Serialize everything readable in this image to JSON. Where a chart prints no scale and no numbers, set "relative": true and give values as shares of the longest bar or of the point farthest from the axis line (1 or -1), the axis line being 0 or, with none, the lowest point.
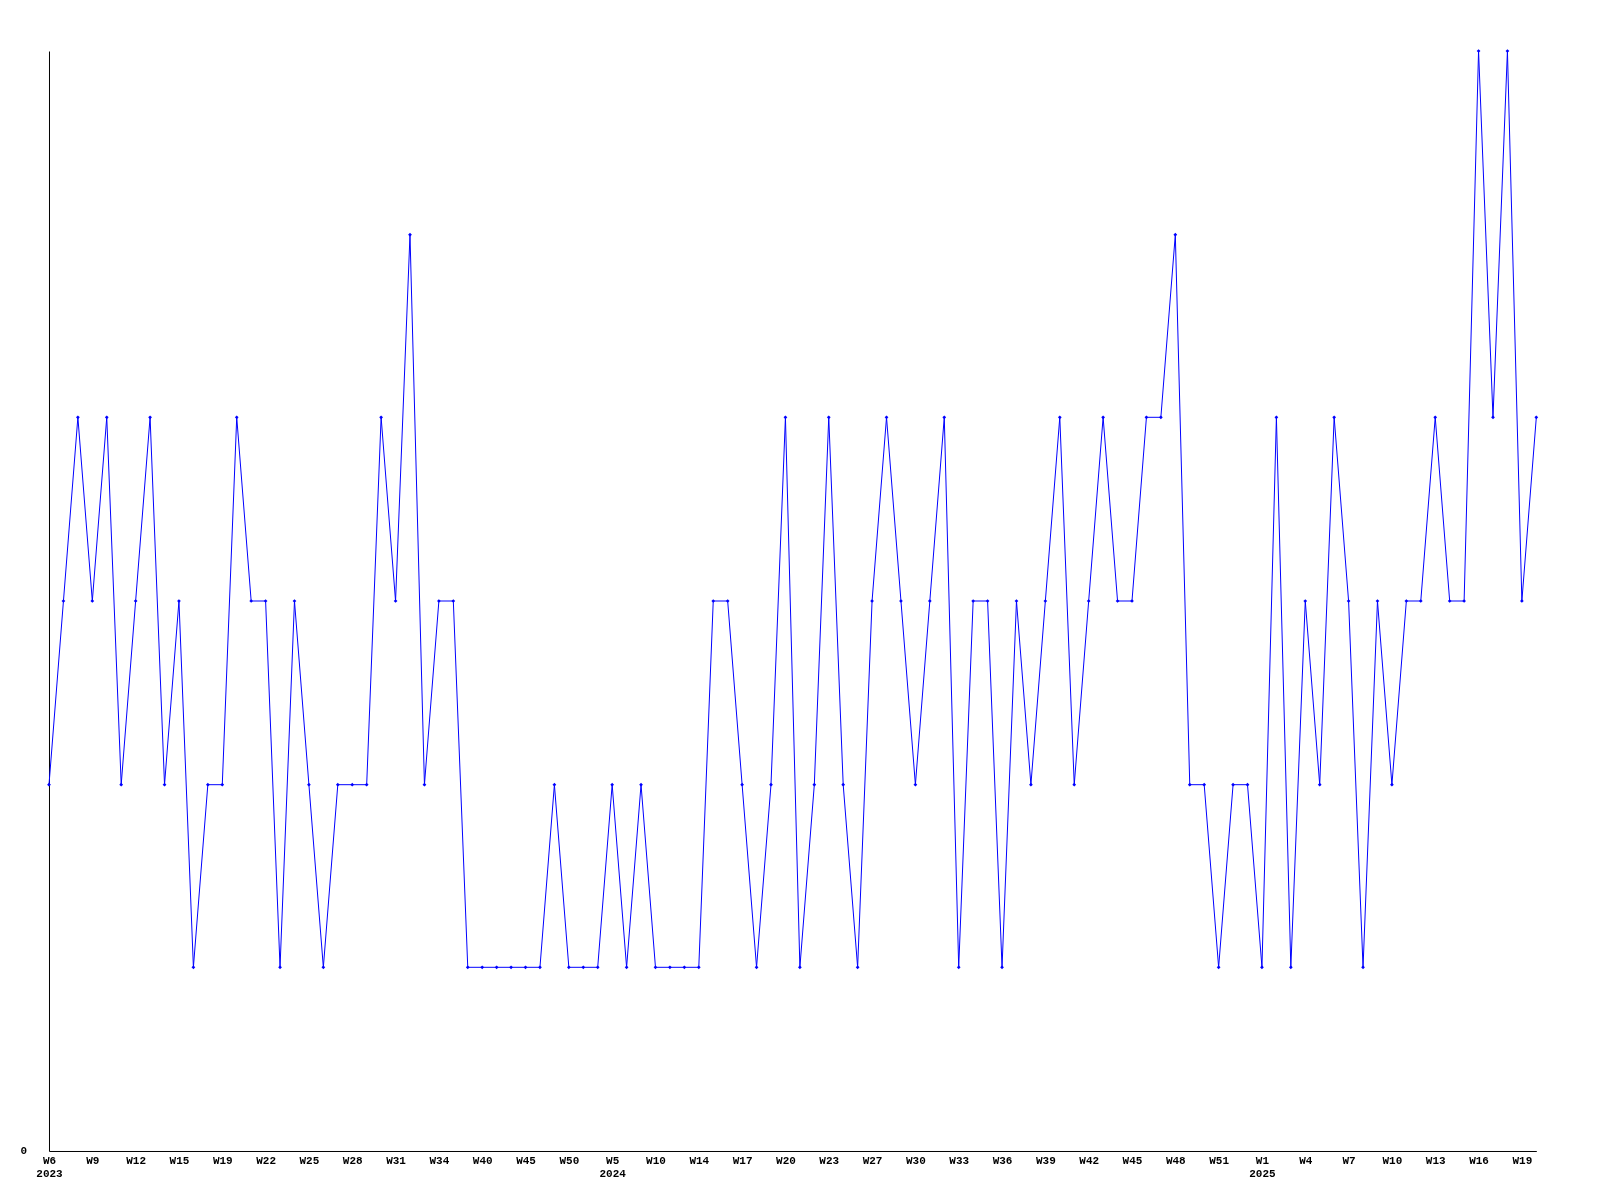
{
  "chart_data": {
    "type": "line",
    "relative": true,
    "marker": "diamond",
    "line_style": "solid",
    "grid": false,
    "annotations": [
      "0"
    ],
    "categories": [
      "W6\n2023",
      null,
      null,
      "W9",
      null,
      null,
      "W12",
      null,
      null,
      "W15",
      null,
      null,
      "W19",
      null,
      null,
      "W22",
      null,
      null,
      "W25",
      null,
      null,
      "W28",
      null,
      null,
      "W31",
      null,
      null,
      "W34",
      null,
      null,
      "W40",
      null,
      null,
      "W45",
      null,
      null,
      "W50",
      null,
      null,
      "W5\n2024",
      null,
      null,
      "W10",
      null,
      null,
      "W14",
      null,
      null,
      "W17",
      null,
      null,
      "W20",
      null,
      null,
      "W23",
      null,
      null,
      "W27",
      null,
      null,
      "W30",
      null,
      null,
      "W33",
      null,
      null,
      "W36",
      null,
      null,
      "W39",
      null,
      null,
      "W42",
      null,
      null,
      "W45",
      null,
      null,
      "W48",
      null,
      null,
      "W51",
      null,
      null,
      "W1\n2025",
      null,
      null,
      "W4",
      null,
      null,
      "W7",
      null,
      null,
      "W10",
      null,
      null,
      "W13",
      null,
      null,
      "W16",
      null,
      null,
      "W19",
      null
    ],
    "series": [
      {
        "color": "#0000ff",
        "values": [
          0.333,
          0.5,
          0.667,
          0.5,
          0.667,
          0.333,
          0.5,
          0.667,
          0.333,
          0.5,
          0.167,
          0.333,
          0.333,
          0.667,
          0.5,
          0.5,
          0.167,
          0.5,
          0.333,
          0.167,
          0.333,
          0.333,
          0.333,
          0.667,
          0.5,
          0.833,
          0.333,
          0.5,
          0.5,
          0.167,
          0.167,
          0.167,
          0.167,
          0.167,
          0.167,
          0.333,
          0.167,
          0.167,
          0.167,
          0.333,
          0.167,
          0.333,
          0.167,
          0.167,
          0.167,
          0.167,
          0.5,
          0.5,
          0.333,
          0.167,
          0.333,
          0.667,
          0.167,
          0.333,
          0.667,
          0.333,
          0.167,
          0.5,
          0.667,
          0.5,
          0.333,
          0.5,
          0.667,
          0.167,
          0.5,
          0.5,
          0.167,
          0.5,
          0.333,
          0.5,
          0.667,
          0.333,
          0.5,
          0.667,
          0.5,
          0.5,
          0.667,
          0.667,
          0.833,
          0.333,
          0.333,
          0.167,
          0.333,
          0.333,
          0.167,
          0.667,
          0.167,
          0.5,
          0.333,
          0.667,
          0.5,
          0.167,
          0.5,
          0.333,
          0.5,
          0.5,
          0.667,
          0.5,
          0.5,
          1,
          0.667,
          1,
          0.5,
          0.667
        ]
      }
    ]
  }
}
